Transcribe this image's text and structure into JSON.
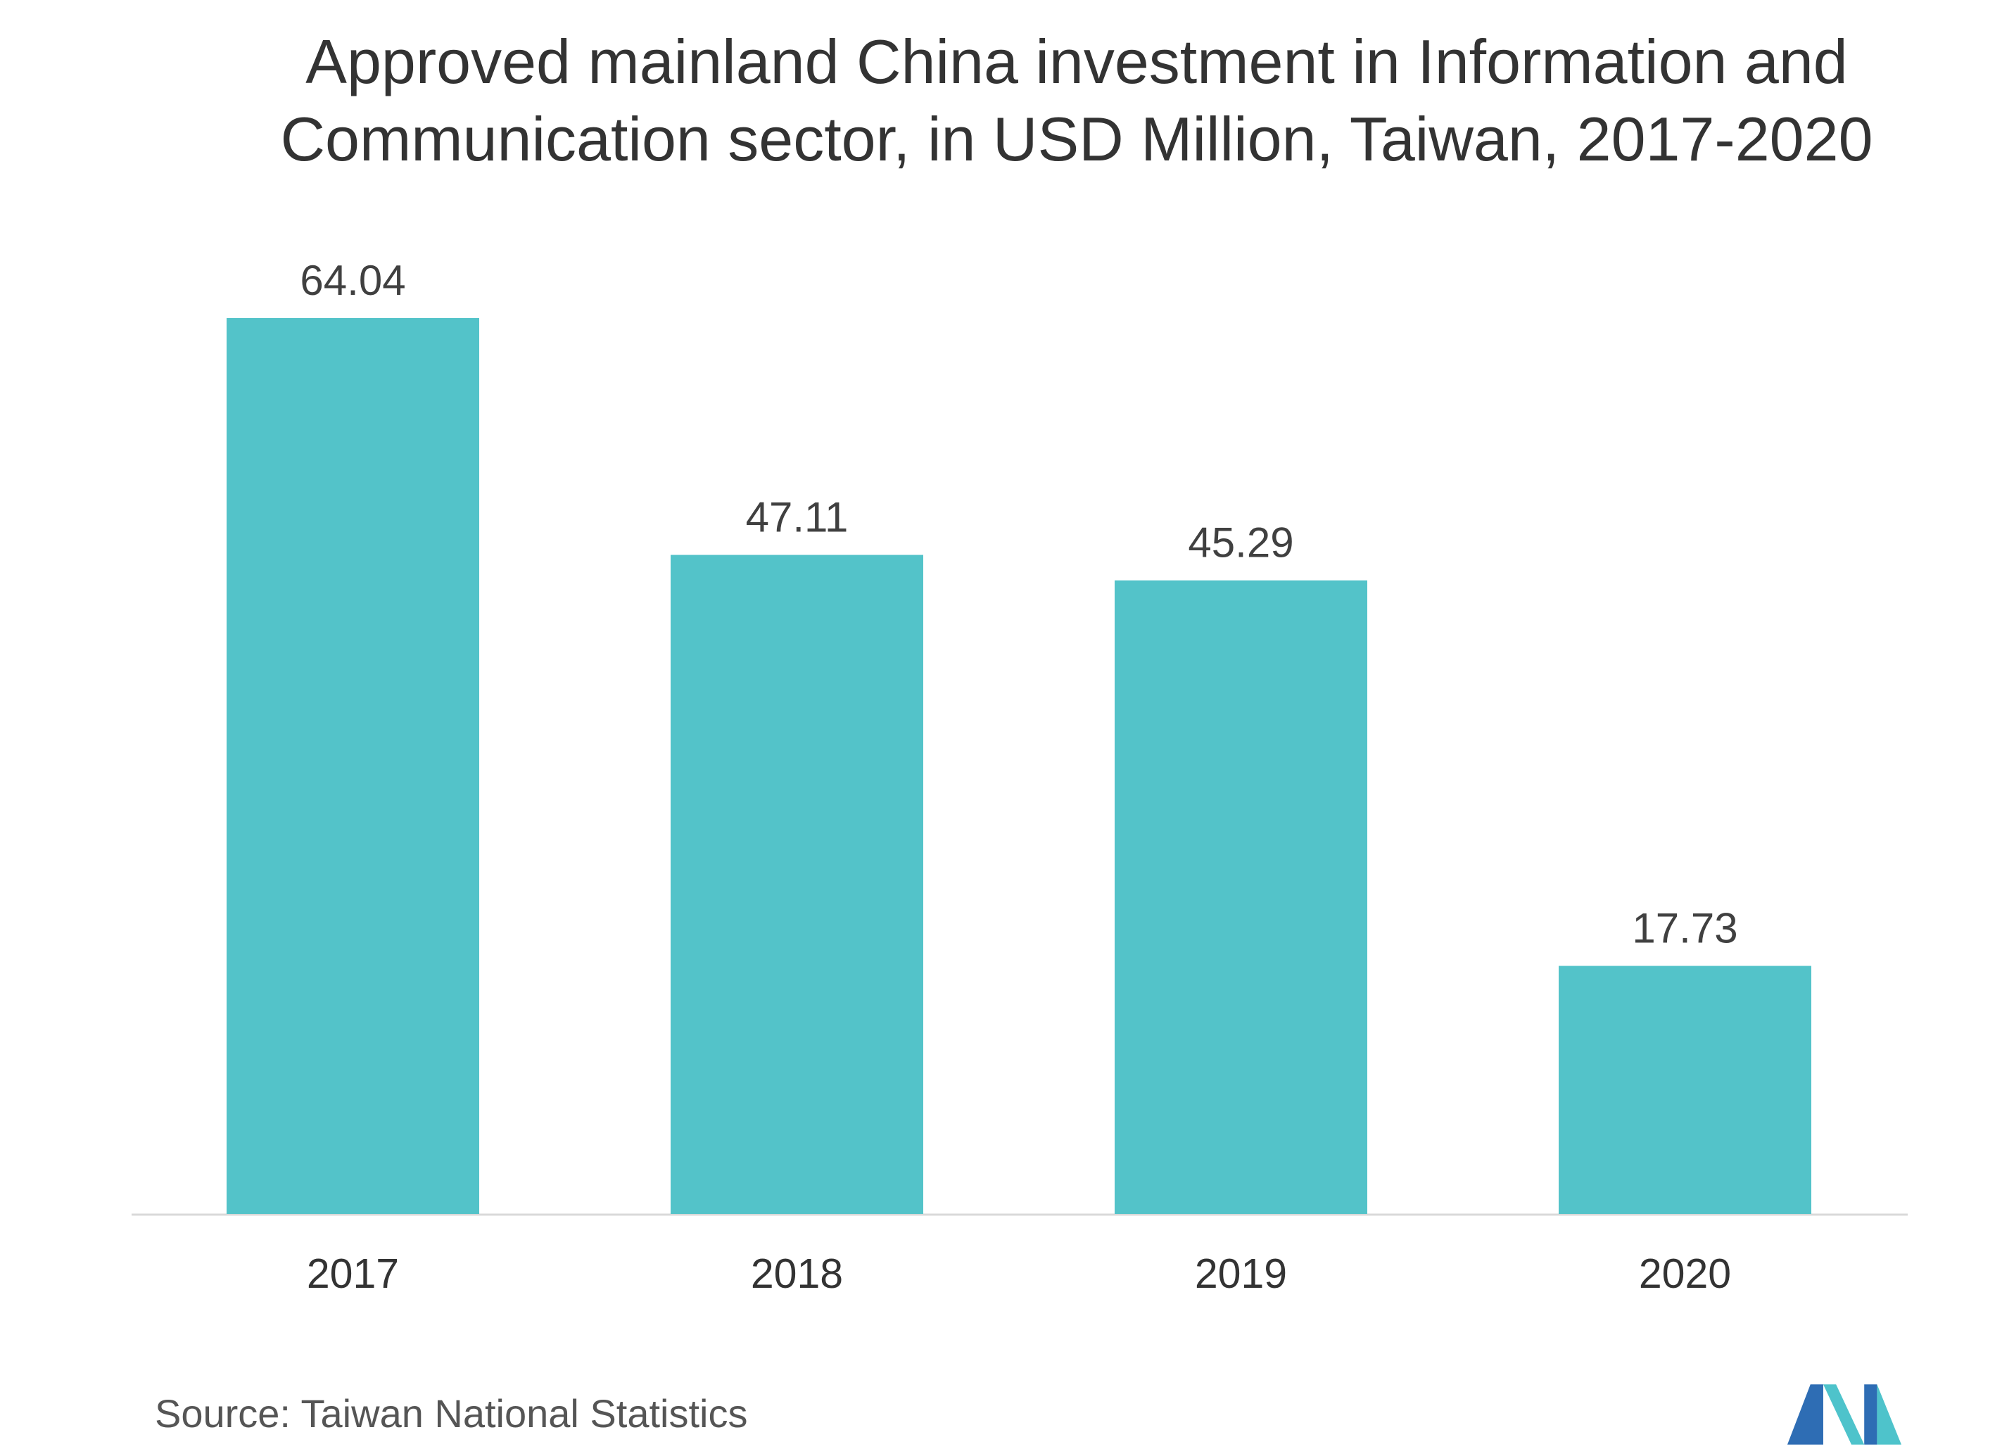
{
  "chart_data": {
    "type": "bar",
    "title_lines": [
      "Approved mainland China investment in Information and",
      "Communication sector, in USD Million, Taiwan, 2017-2020"
    ],
    "categories": [
      "2017",
      "2018",
      "2019",
      "2020"
    ],
    "values": [
      64.04,
      47.11,
      45.29,
      17.73
    ],
    "xlabel": "",
    "ylabel": "",
    "grid": false,
    "legend": "none",
    "colors": {
      "bar": "#53C3C9",
      "baseline": "#D9D9D9",
      "value_label": "#404040",
      "category_label": "#333333"
    }
  },
  "source": "Source: Taiwan National Statistics",
  "icons": {
    "logo": "brand-logo-icon"
  }
}
